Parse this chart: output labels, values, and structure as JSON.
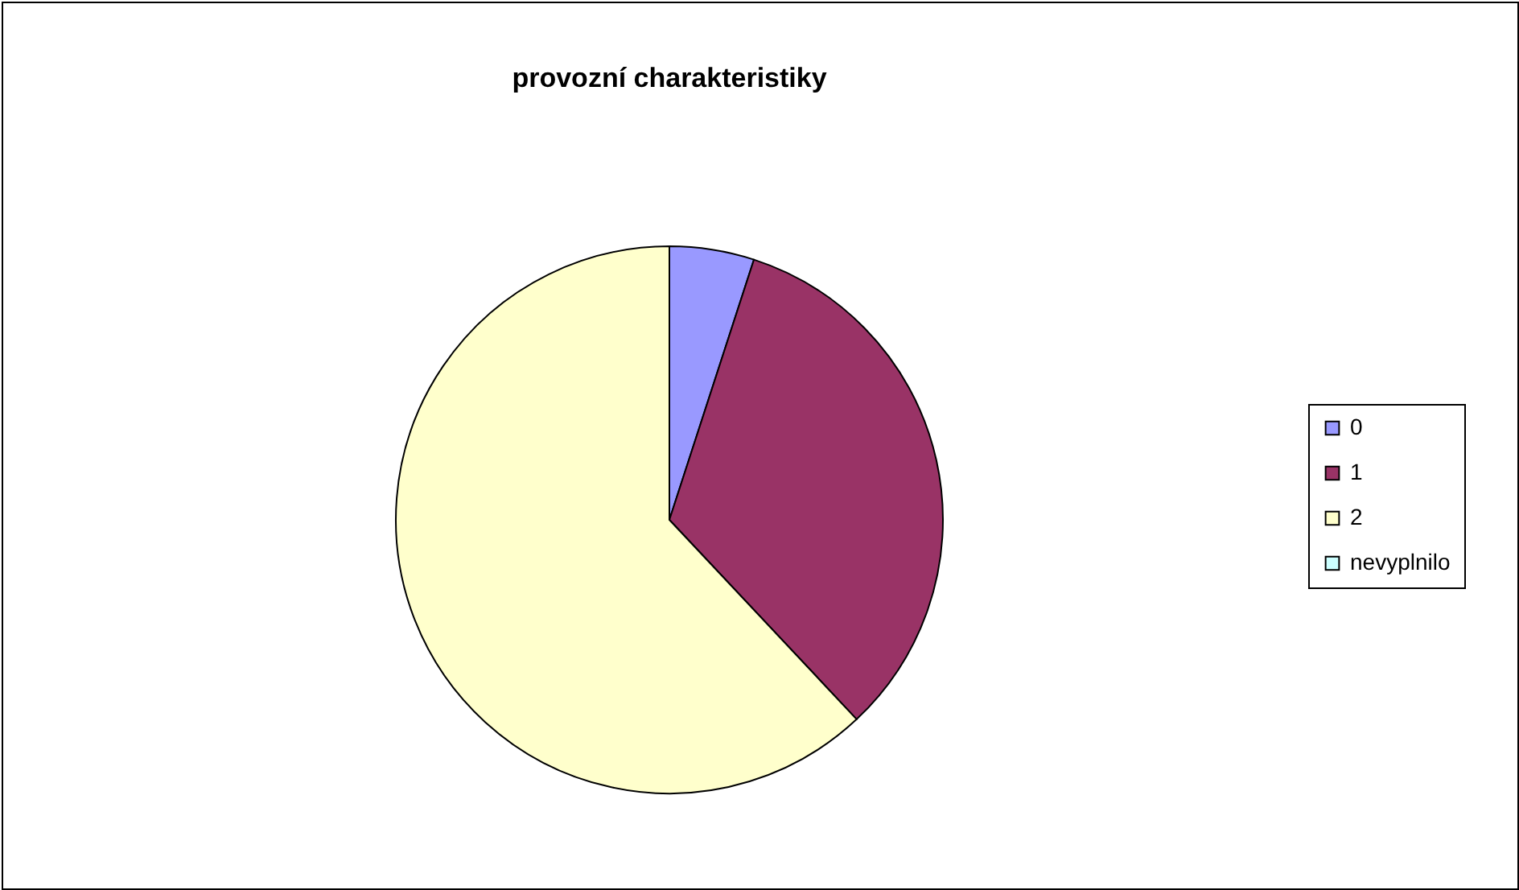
{
  "chart_data": {
    "type": "pie",
    "title": "provozní charakteristiky",
    "categories": [
      "0",
      "1",
      "2",
      "nevyplnilo"
    ],
    "values": [
      5,
      33,
      62,
      0
    ],
    "colors": [
      "#9999ff",
      "#993366",
      "#ffffcc",
      "#ccffff"
    ],
    "legend": "right"
  }
}
